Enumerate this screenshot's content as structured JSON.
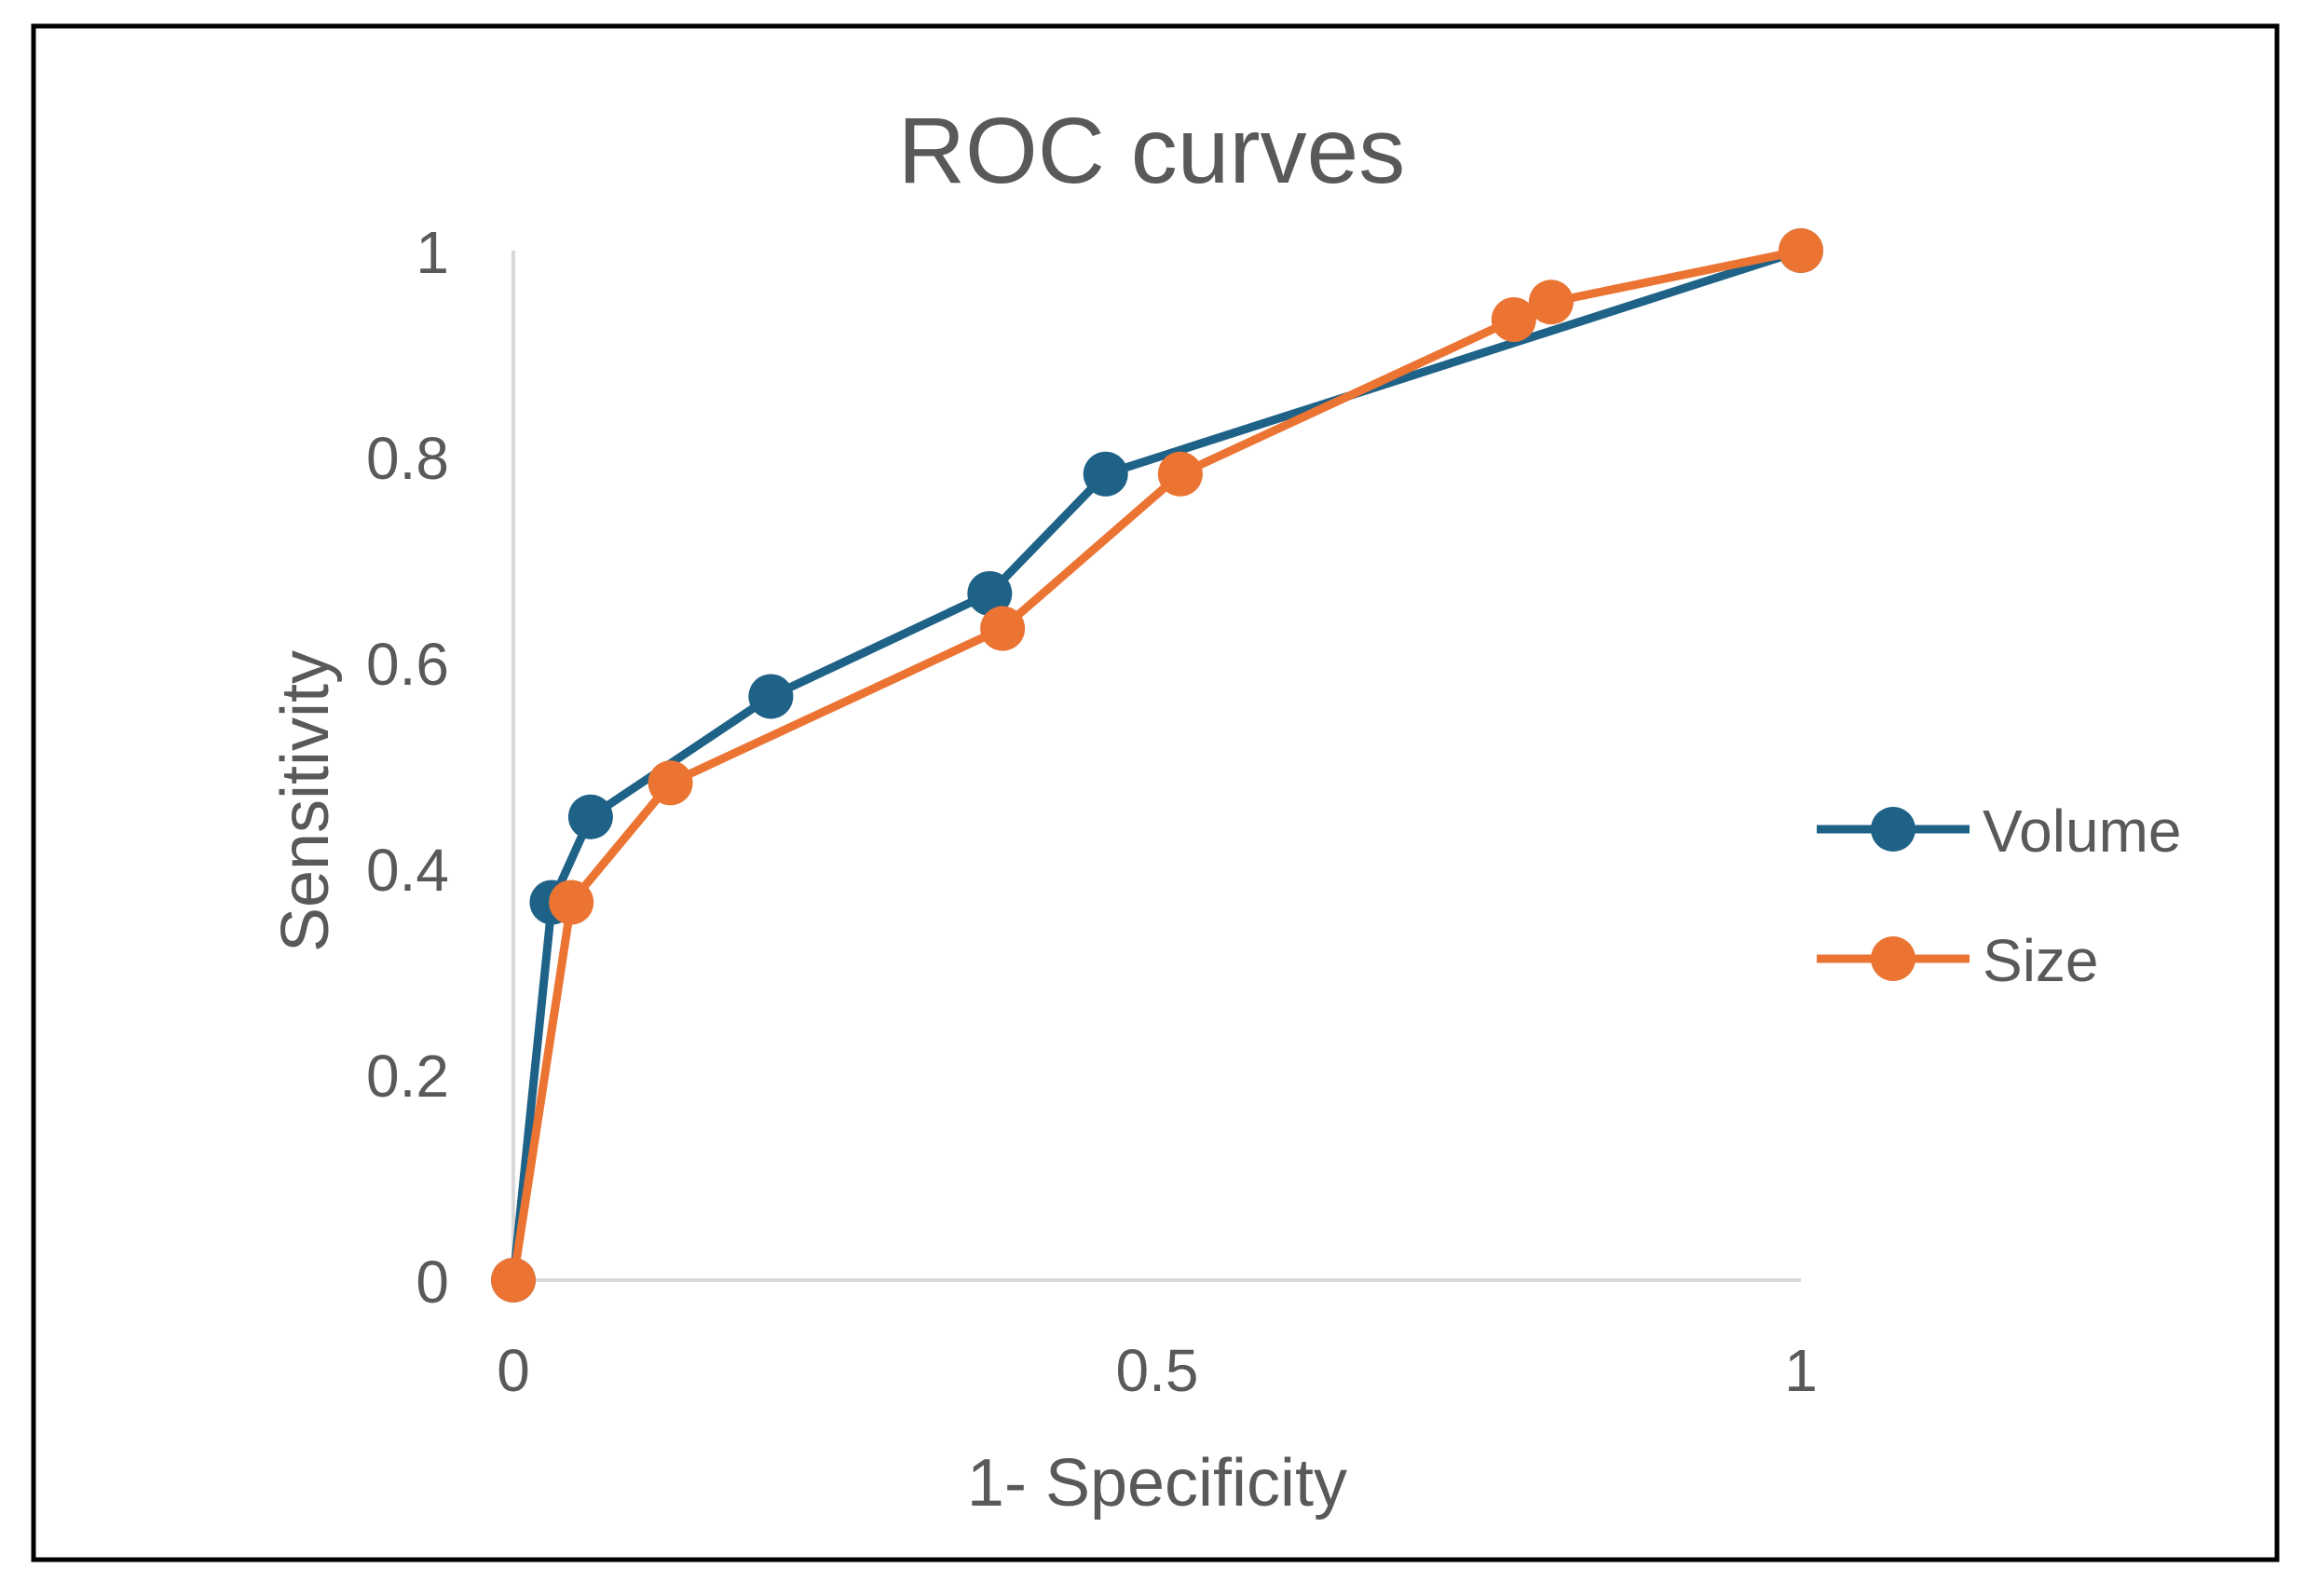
{
  "chart_data": {
    "type": "scatter",
    "title": "ROC curves",
    "xlabel": "1- Specificity",
    "ylabel": "Sensitivity",
    "xlim": [
      0,
      1
    ],
    "ylim": [
      0,
      1
    ],
    "x_ticks": [
      0,
      0.5,
      1
    ],
    "x_tick_labels": [
      "0",
      "0.5",
      "1"
    ],
    "y_ticks": [
      0,
      0.2,
      0.4,
      0.6,
      0.8,
      1
    ],
    "y_tick_labels": [
      "0",
      "0.2",
      "0.4",
      "0.6",
      "0.8",
      "1"
    ],
    "grid": false,
    "legend_position": "right",
    "series": [
      {
        "name": "Volume",
        "color": "#1F6287",
        "x": [
          0,
          0.03,
          0.06,
          0.2,
          0.37,
          0.46,
          1
        ],
        "y": [
          0,
          0.367,
          0.45,
          0.567,
          0.667,
          0.783,
          1
        ]
      },
      {
        "name": "Size",
        "color": "#EB7433",
        "x": [
          0,
          0.045,
          0.122,
          0.38,
          0.518,
          0.777,
          0.806,
          1
        ],
        "y": [
          0,
          0.367,
          0.483,
          0.633,
          0.783,
          0.933,
          0.95,
          1
        ]
      }
    ]
  }
}
